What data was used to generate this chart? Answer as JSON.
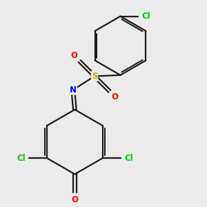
{
  "background_color": "#ebebeb",
  "bond_color": "#1a1a1a",
  "atom_colors": {
    "Cl": "#00cc00",
    "O": "#ff0000",
    "N": "#0000ff",
    "S": "#ccaa00",
    "C": "#1a1a1a"
  },
  "line_width": 1.6,
  "figsize": [
    3.0,
    3.0
  ],
  "dpi": 100
}
